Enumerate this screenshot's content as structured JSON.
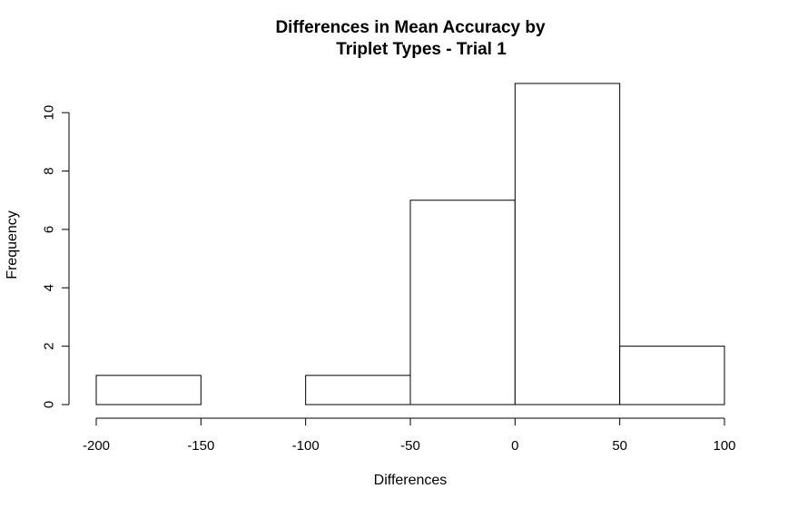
{
  "chart_data": {
    "type": "bar",
    "title_lines": [
      "Differences in Mean Accuracy by",
      "Triplet Types - Trial 1"
    ],
    "xlabel": "Differences",
    "ylabel": "Frequency",
    "bins": [
      {
        "start": -200,
        "end": -150,
        "count": 1
      },
      {
        "start": -150,
        "end": -100,
        "count": 0
      },
      {
        "start": -100,
        "end": -50,
        "count": 1
      },
      {
        "start": -50,
        "end": 0,
        "count": 7
      },
      {
        "start": 0,
        "end": 50,
        "count": 11
      },
      {
        "start": 50,
        "end": 100,
        "count": 2
      }
    ],
    "x_ticks": [
      -200,
      -150,
      -100,
      -50,
      0,
      50,
      100
    ],
    "x_tick_labels": [
      "-200",
      "-150",
      "-100",
      "-50",
      "0",
      "50",
      "100"
    ],
    "y_ticks": [
      0,
      2,
      4,
      6,
      8,
      10
    ],
    "y_tick_labels": [
      "0",
      "2",
      "4",
      "6",
      "8",
      "10"
    ],
    "xlim": [
      -200,
      100
    ],
    "ylim": [
      0,
      11
    ],
    "grid": false,
    "colors": {
      "bar_fill": "#ffffff",
      "bar_stroke": "#000000"
    }
  }
}
